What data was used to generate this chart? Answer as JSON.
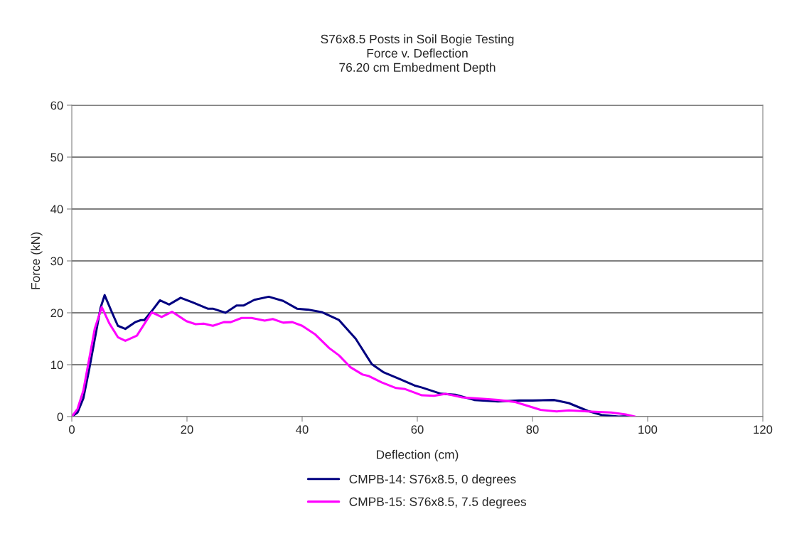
{
  "chart_data": {
    "type": "line",
    "title": "S76x8.5 Posts in Soil Bogie Testing\nForce v. Deflection\n76.20 cm Embedment Depth",
    "xlabel": "Deflection (cm)",
    "ylabel": "Force (kN)",
    "xlim": [
      0,
      120
    ],
    "xticks": [
      0,
      20,
      40,
      60,
      80,
      100,
      120
    ],
    "ylim": [
      0,
      60
    ],
    "yticks": [
      0,
      10,
      20,
      30,
      40,
      50,
      60
    ],
    "grid": "y",
    "legend": "bottom",
    "marker": "none",
    "line_style": "solid",
    "series": [
      {
        "name": "CMPB-14: S76x8.5, 0 degrees",
        "color": "#000080",
        "x": [
          0,
          1,
          2,
          3,
          4,
          5,
          5.7,
          7,
          8,
          9.3,
          11,
          12,
          12.6,
          14,
          15.3,
          16.9,
          18.9,
          21,
          23.6,
          24.5,
          26.7,
          28.6,
          29.8,
          31.7,
          34.2,
          36.7,
          39.1,
          41,
          43.5,
          46.4,
          49.3,
          52.1,
          54.2,
          57,
          59.5,
          60.8,
          64.1,
          66.6,
          69.9,
          74,
          77.7,
          80,
          83.8,
          86.3,
          89.6,
          92,
          95,
          97
        ],
        "values": [
          0,
          0.8,
          3.5,
          9,
          15,
          21,
          23.4,
          20,
          17.5,
          16.9,
          18.2,
          18.6,
          18.6,
          20.5,
          22.4,
          21.6,
          22.9,
          22,
          20.8,
          20.8,
          20,
          21.4,
          21.4,
          22.5,
          23.1,
          22.3,
          20.8,
          20.6,
          20.1,
          18.6,
          15,
          10.1,
          8.5,
          7.2,
          6.0,
          5.6,
          4.4,
          4.2,
          3.2,
          2.9,
          3.1,
          3.1,
          3.2,
          2.6,
          1.1,
          0.3,
          0,
          0.1
        ]
      },
      {
        "name": "CMPB-15: S76x8.5, 7.5 degrees",
        "color": "#ff00ff",
        "x": [
          0,
          1,
          2,
          3,
          4,
          5.2,
          6.5,
          8,
          9.3,
          11.3,
          13.9,
          15.6,
          17.4,
          19.9,
          21.5,
          22.9,
          24.5,
          26.4,
          27.6,
          29.5,
          31.2,
          33.5,
          34.9,
          36.7,
          38.3,
          40,
          42.2,
          44.7,
          46.4,
          48.4,
          50.5,
          51.6,
          53.8,
          56.3,
          57.9,
          60.8,
          62.9,
          64.9,
          67.8,
          71.9,
          74,
          77,
          81.4,
          84.2,
          86.3,
          89.6,
          93.7,
          96.2,
          97.8
        ],
        "values": [
          0,
          1.5,
          5,
          11,
          17,
          21.1,
          18,
          15.3,
          14.6,
          15.6,
          20.1,
          19.2,
          20.2,
          18.4,
          17.8,
          17.9,
          17.5,
          18.2,
          18.2,
          19.0,
          19.0,
          18.5,
          18.8,
          18.1,
          18.2,
          17.5,
          15.9,
          13.2,
          11.8,
          9.5,
          8.1,
          7.8,
          6.6,
          5.5,
          5.3,
          4.1,
          4.0,
          4.4,
          3.7,
          3.4,
          3.2,
          2.8,
          1.3,
          1.0,
          1.2,
          1.0,
          0.8,
          0.4,
          0
        ]
      }
    ]
  }
}
